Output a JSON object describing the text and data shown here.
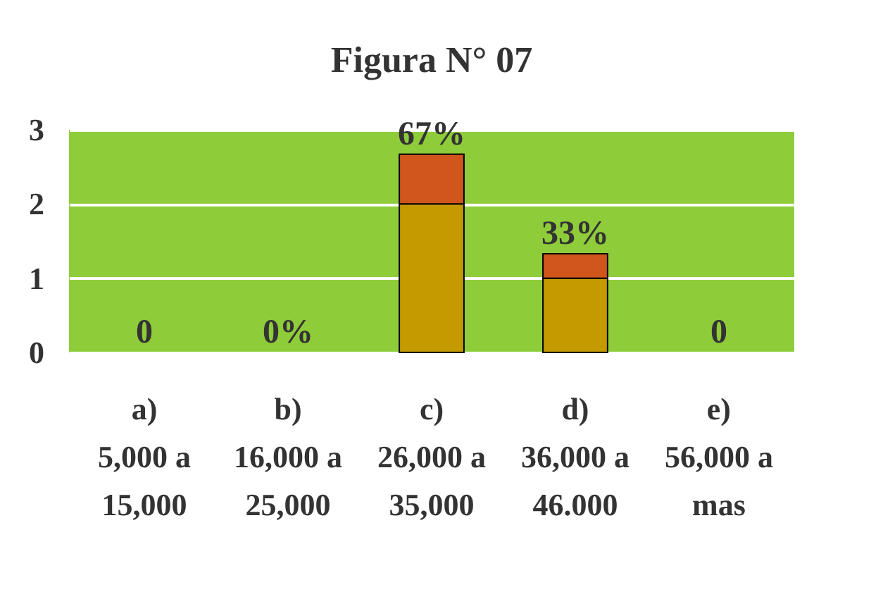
{
  "chart_data": {
    "type": "bar",
    "title": "Figura N° 07",
    "stacked": true,
    "categories": [
      "a)\n5,000 a\n15,000",
      "b)\n16,000 a\n25,000",
      "c)\n26,000 a\n35,000",
      "d)\n36,000 a\n46.000",
      "e)\n56,000 a\nmas"
    ],
    "series": [
      {
        "color": "#c49a00",
        "values": [
          0,
          0,
          2,
          1,
          0
        ]
      },
      {
        "color": "#d0561c",
        "values": [
          0,
          0,
          0.67,
          0.33,
          0
        ],
        "value_labels": [
          "0",
          "0%",
          "67%",
          "33%",
          "0"
        ]
      }
    ],
    "ylim": [
      0,
      3
    ],
    "yticks": [
      0,
      1,
      2,
      3
    ],
    "grid": "y"
  }
}
